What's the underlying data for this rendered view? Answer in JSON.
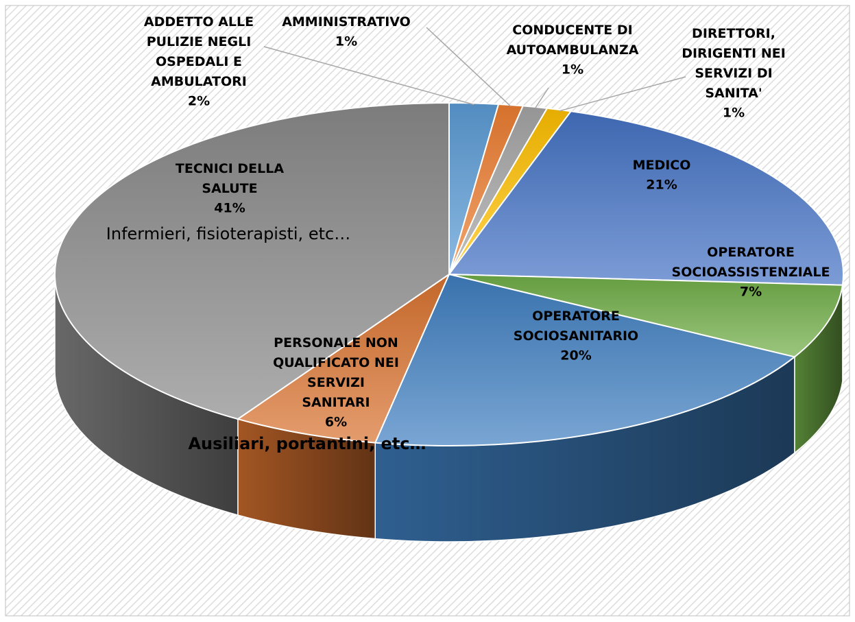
{
  "chart_data": {
    "type": "pie3d",
    "categories": [
      "ADDETTO ALLE PULIZIE NEGLI OSPEDALI E AMBULATORI",
      "AMMINISTRATIVO",
      "CONDUCENTE DI AUTOAMBULANZA",
      "DIRETTORI, DIRIGENTI NEI SERVIZI DI SANITA'",
      "MEDICO",
      "OPERATORE SOCIOASSISTENZIALE",
      "OPERATORE SOCIOSANITARIO",
      "PERSONALE NON QUALIFICATO NEI SERVIZI SANITARI",
      "TECNICI DELLA SALUTE"
    ],
    "values": [
      2,
      1,
      1,
      1,
      21,
      7,
      20,
      6,
      41
    ],
    "value_labels": [
      "2%",
      "1%",
      "1%",
      "1%",
      "21%",
      "7%",
      "20%",
      "6%",
      "41%"
    ],
    "colors": [
      "#5b9bd5",
      "#ed7d31",
      "#a5a5a5",
      "#ffc000",
      "#4472c4",
      "#70ad47",
      "#3f7fc0",
      "#d9722f",
      "#8a8a8a"
    ],
    "annotations": [
      "Infermieri, fisioterapisti, etc…",
      "Ausiliari, portantini, etc…"
    ]
  }
}
